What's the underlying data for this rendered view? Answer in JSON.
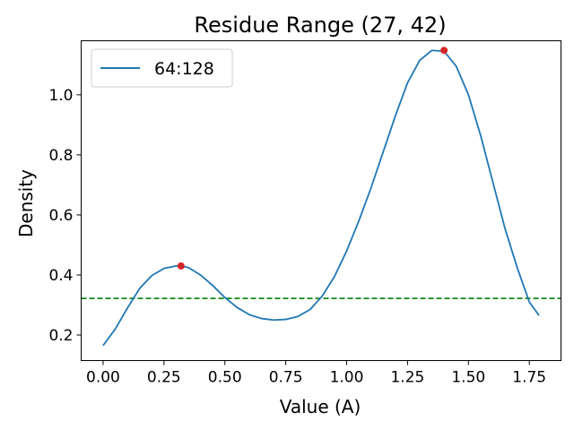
{
  "chart_data": {
    "type": "line",
    "title": "Residue Range (27, 42)",
    "xlabel": "Value (A)",
    "ylabel": "Density",
    "xlim": [
      -0.09,
      1.88
    ],
    "ylim": [
      0.115,
      1.18
    ],
    "x_ticks": [
      0.0,
      0.25,
      0.5,
      0.75,
      1.0,
      1.25,
      1.5,
      1.75
    ],
    "x_tick_labels": [
      "0.00",
      "0.25",
      "0.50",
      "0.75",
      "1.00",
      "1.25",
      "1.50",
      "1.75"
    ],
    "y_ticks": [
      0.2,
      0.4,
      0.6,
      0.8,
      1.0
    ],
    "y_tick_labels": [
      "0.2",
      "0.4",
      "0.6",
      "0.8",
      "1.0"
    ],
    "grid": false,
    "legend": {
      "placement": "top-left",
      "entries": [
        "64:128"
      ]
    },
    "series": [
      {
        "name": "64:128",
        "color": "#1f77b4",
        "x": [
          0.0,
          0.05,
          0.1,
          0.15,
          0.2,
          0.25,
          0.3,
          0.32,
          0.35,
          0.4,
          0.45,
          0.5,
          0.55,
          0.6,
          0.65,
          0.7,
          0.75,
          0.8,
          0.85,
          0.9,
          0.95,
          1.0,
          1.05,
          1.1,
          1.15,
          1.2,
          1.25,
          1.3,
          1.35,
          1.4,
          1.45,
          1.5,
          1.55,
          1.6,
          1.65,
          1.7,
          1.75,
          1.79
        ],
        "y": [
          0.165,
          0.22,
          0.29,
          0.355,
          0.398,
          0.422,
          0.43,
          0.43,
          0.425,
          0.4,
          0.365,
          0.325,
          0.292,
          0.268,
          0.255,
          0.25,
          0.252,
          0.262,
          0.285,
          0.33,
          0.395,
          0.48,
          0.58,
          0.69,
          0.81,
          0.93,
          1.04,
          1.115,
          1.148,
          1.145,
          1.095,
          1.0,
          0.865,
          0.71,
          0.555,
          0.425,
          0.31,
          0.265
        ]
      }
    ],
    "peaks": {
      "color": "#d62728",
      "points": [
        {
          "x": 0.32,
          "y": 0.43
        },
        {
          "x": 1.4,
          "y": 1.148
        }
      ]
    },
    "threshold": {
      "y": 0.322,
      "color": "#008000",
      "style": "dashed"
    }
  }
}
